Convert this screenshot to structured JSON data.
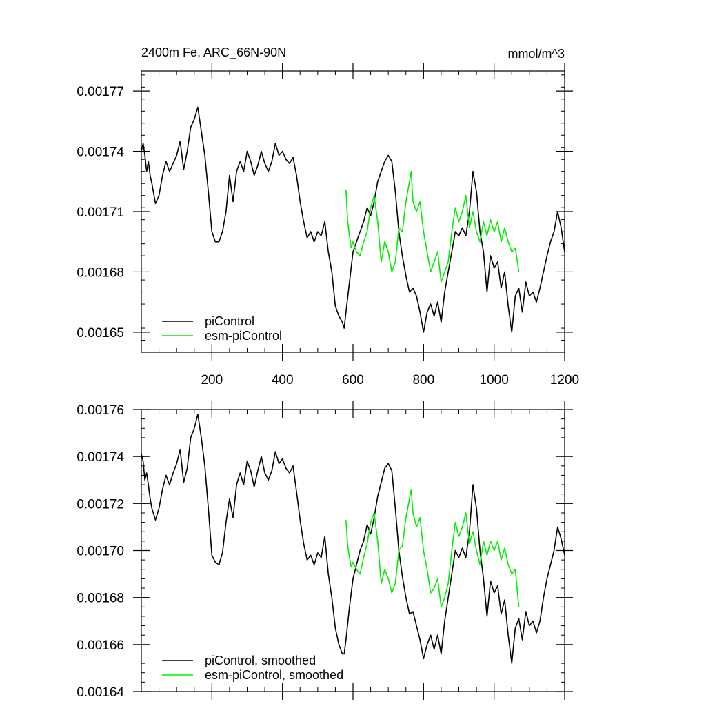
{
  "chart_data": [
    {
      "type": "line",
      "title": "2400m Fe, ARC_66N-90N",
      "units": "mmol/m^3",
      "xlim": [
        0,
        1200
      ],
      "ylim": [
        0.00164,
        0.00178
      ],
      "x_ticks": [
        {
          "value": 200,
          "label": "200"
        },
        {
          "value": 400,
          "label": "400"
        },
        {
          "value": 600,
          "label": "600"
        },
        {
          "value": 800,
          "label": "800"
        },
        {
          "value": 1000,
          "label": "1000"
        },
        {
          "value": 1200,
          "label": "1200"
        }
      ],
      "y_ticks": [
        {
          "value": 0.00165,
          "label": "0.00165"
        },
        {
          "value": 0.00168,
          "label": "0.00168"
        },
        {
          "value": 0.00171,
          "label": "0.00171"
        },
        {
          "value": 0.00174,
          "label": "0.00174"
        },
        {
          "value": 0.00177,
          "label": "0.00177"
        }
      ],
      "legend_position": "bottom-left",
      "series": [
        {
          "name": "piControl",
          "color": "#000000",
          "x": [
            0,
            5,
            10,
            15,
            20,
            25,
            30,
            40,
            50,
            60,
            70,
            80,
            90,
            100,
            110,
            120,
            130,
            140,
            150,
            160,
            170,
            180,
            190,
            200,
            210,
            220,
            230,
            240,
            250,
            260,
            270,
            280,
            290,
            300,
            310,
            320,
            330,
            340,
            350,
            360,
            370,
            380,
            390,
            400,
            410,
            420,
            430,
            440,
            450,
            460,
            470,
            480,
            490,
            500,
            510,
            520,
            530,
            540,
            550,
            560,
            570,
            575,
            580,
            590,
            600,
            610,
            620,
            630,
            640,
            650,
            660,
            670,
            680,
            690,
            700,
            710,
            720,
            730,
            740,
            750,
            760,
            770,
            780,
            790,
            800,
            810,
            820,
            830,
            840,
            850,
            860,
            870,
            880,
            890,
            900,
            910,
            920,
            930,
            940,
            950,
            960,
            970,
            980,
            990,
            1000,
            1010,
            1020,
            1030,
            1040,
            1050,
            1060,
            1070,
            1080,
            1090,
            1100,
            1110,
            1120,
            1130,
            1140,
            1150,
            1160,
            1170,
            1180,
            1190,
            1200
          ],
          "values": [
            0.00174,
            0.001744,
            0.001738,
            0.00173,
            0.001735,
            0.001728,
            0.001724,
            0.001714,
            0.001718,
            0.001728,
            0.001735,
            0.00173,
            0.001734,
            0.001738,
            0.001745,
            0.001731,
            0.00174,
            0.001752,
            0.001756,
            0.001762,
            0.00175,
            0.001738,
            0.00172,
            0.0017,
            0.001695,
            0.001695,
            0.0017,
            0.00171,
            0.001728,
            0.001715,
            0.00173,
            0.001735,
            0.00173,
            0.00174,
            0.001735,
            0.001728,
            0.001733,
            0.00174,
            0.001734,
            0.00173,
            0.001735,
            0.001744,
            0.001738,
            0.00174,
            0.001736,
            0.001734,
            0.001737,
            0.001728,
            0.001715,
            0.001705,
            0.001697,
            0.0017,
            0.001695,
            0.0017,
            0.001698,
            0.001705,
            0.00169,
            0.00168,
            0.001663,
            0.001658,
            0.001655,
            0.001652,
            0.00166,
            0.001675,
            0.00169,
            0.001695,
            0.0017,
            0.001705,
            0.001712,
            0.001708,
            0.001715,
            0.001725,
            0.00173,
            0.001735,
            0.001738,
            0.001735,
            0.00172,
            0.0017,
            0.001688,
            0.001678,
            0.00167,
            0.001672,
            0.001668,
            0.00166,
            0.00165,
            0.00166,
            0.001664,
            0.001658,
            0.001665,
            0.001655,
            0.00167,
            0.00168,
            0.00169,
            0.0017,
            0.001698,
            0.001702,
            0.001698,
            0.00171,
            0.00173,
            0.00172,
            0.0017,
            0.00169,
            0.00167,
            0.001688,
            0.001682,
            0.001685,
            0.001672,
            0.00168,
            0.001663,
            0.00165,
            0.001668,
            0.001672,
            0.00166,
            0.001675,
            0.001668,
            0.00167,
            0.001665,
            0.001672,
            0.00168,
            0.001688,
            0.001695,
            0.0017,
            0.00171,
            0.001702,
            0.00169
          ]
        },
        {
          "name": "esm-piControl",
          "color": "#00ee00",
          "x": [
            580,
            585,
            590,
            595,
            600,
            610,
            620,
            630,
            640,
            650,
            660,
            670,
            680,
            690,
            700,
            710,
            720,
            730,
            740,
            750,
            760,
            765,
            770,
            780,
            790,
            800,
            810,
            820,
            830,
            840,
            850,
            860,
            870,
            880,
            890,
            900,
            910,
            920,
            930,
            940,
            950,
            960,
            970,
            980,
            990,
            1000,
            1010,
            1020,
            1030,
            1040,
            1050,
            1060,
            1070
          ],
          "values": [
            0.001721,
            0.001705,
            0.001698,
            0.001692,
            0.001695,
            0.00169,
            0.001688,
            0.001695,
            0.0017,
            0.001712,
            0.001718,
            0.001705,
            0.001685,
            0.001695,
            0.00169,
            0.00168,
            0.001685,
            0.001702,
            0.0017,
            0.001715,
            0.001725,
            0.00173,
            0.001715,
            0.00171,
            0.001715,
            0.0017,
            0.00169,
            0.00168,
            0.001685,
            0.00169,
            0.001675,
            0.00168,
            0.001685,
            0.0017,
            0.001712,
            0.001705,
            0.00171,
            0.001718,
            0.001702,
            0.00171,
            0.0017,
            0.001695,
            0.001705,
            0.001698,
            0.001706,
            0.0017,
            0.001705,
            0.001695,
            0.001702,
            0.001695,
            0.00169,
            0.001692,
            0.00168
          ]
        }
      ]
    },
    {
      "type": "line",
      "title": "",
      "xlim": [
        0,
        1200
      ],
      "ylim": [
        0.00164,
        0.00176
      ],
      "y_ticks": [
        {
          "value": 0.00164,
          "label": "0.00164"
        },
        {
          "value": 0.00166,
          "label": "0.00166"
        },
        {
          "value": 0.00168,
          "label": "0.00168"
        },
        {
          "value": 0.0017,
          "label": "0.00170"
        },
        {
          "value": 0.00172,
          "label": "0.00172"
        },
        {
          "value": 0.00174,
          "label": "0.00174"
        },
        {
          "value": 0.00176,
          "label": "0.00176"
        }
      ],
      "x_ticks": [
        {
          "value": 200,
          "label": ""
        },
        {
          "value": 400,
          "label": ""
        },
        {
          "value": 600,
          "label": ""
        },
        {
          "value": 800,
          "label": ""
        },
        {
          "value": 1000,
          "label": ""
        },
        {
          "value": 1200,
          "label": ""
        }
      ],
      "legend_position": "bottom-left",
      "series": [
        {
          "name": "piControl, smoothed",
          "color": "#000000",
          "x": [
            0,
            5,
            10,
            15,
            20,
            25,
            30,
            40,
            50,
            60,
            70,
            80,
            90,
            100,
            110,
            120,
            130,
            140,
            150,
            160,
            170,
            180,
            190,
            200,
            210,
            220,
            230,
            240,
            250,
            260,
            270,
            280,
            290,
            300,
            310,
            320,
            330,
            340,
            350,
            360,
            370,
            380,
            390,
            400,
            410,
            420,
            430,
            440,
            450,
            460,
            470,
            480,
            490,
            500,
            510,
            520,
            530,
            540,
            550,
            560,
            570,
            575,
            580,
            590,
            600,
            610,
            620,
            630,
            640,
            650,
            660,
            670,
            680,
            690,
            700,
            710,
            720,
            730,
            740,
            750,
            760,
            770,
            780,
            790,
            800,
            810,
            820,
            830,
            840,
            850,
            860,
            870,
            880,
            890,
            900,
            910,
            920,
            930,
            940,
            950,
            960,
            970,
            980,
            990,
            1000,
            1010,
            1020,
            1030,
            1040,
            1050,
            1060,
            1070,
            1080,
            1090,
            1100,
            1110,
            1120,
            1130,
            1140,
            1150,
            1160,
            1170,
            1180,
            1190,
            1200
          ],
          "values": [
            0.001741,
            0.001738,
            0.00173,
            0.001733,
            0.001728,
            0.001722,
            0.001718,
            0.001713,
            0.001718,
            0.001726,
            0.001732,
            0.001728,
            0.001733,
            0.001737,
            0.001743,
            0.001729,
            0.001735,
            0.001748,
            0.001752,
            0.001758,
            0.001748,
            0.001736,
            0.001718,
            0.001698,
            0.001695,
            0.001694,
            0.001699,
            0.001712,
            0.001722,
            0.001714,
            0.001728,
            0.001733,
            0.001728,
            0.001738,
            0.001734,
            0.001727,
            0.001734,
            0.00174,
            0.001733,
            0.00173,
            0.001734,
            0.001742,
            0.001737,
            0.001739,
            0.001735,
            0.001733,
            0.001736,
            0.001725,
            0.001713,
            0.001703,
            0.001696,
            0.001698,
            0.001694,
            0.001699,
            0.001697,
            0.001706,
            0.00169,
            0.00168,
            0.001667,
            0.00166,
            0.001656,
            0.001656,
            0.001662,
            0.001676,
            0.001688,
            0.001694,
            0.0017,
            0.001704,
            0.001711,
            0.001707,
            0.001714,
            0.001723,
            0.001729,
            0.001735,
            0.001737,
            0.001734,
            0.001718,
            0.0017,
            0.001689,
            0.00168,
            0.001673,
            0.001674,
            0.001668,
            0.001662,
            0.001654,
            0.00166,
            0.001664,
            0.001658,
            0.001664,
            0.001656,
            0.00167,
            0.00168,
            0.00169,
            0.0017,
            0.001697,
            0.001701,
            0.001697,
            0.001708,
            0.001728,
            0.001718,
            0.0017,
            0.001688,
            0.001672,
            0.001687,
            0.001682,
            0.001685,
            0.001673,
            0.001679,
            0.001664,
            0.001652,
            0.001667,
            0.001671,
            0.001662,
            0.001674,
            0.001668,
            0.00167,
            0.001665,
            0.00167,
            0.00168,
            0.001688,
            0.001694,
            0.0017,
            0.00171,
            0.001705,
            0.001698
          ]
        },
        {
          "name": "esm-piControl, smoothed",
          "color": "#00ee00",
          "x": [
            580,
            585,
            590,
            595,
            600,
            610,
            620,
            630,
            640,
            650,
            660,
            670,
            680,
            690,
            700,
            710,
            720,
            730,
            740,
            750,
            760,
            765,
            770,
            780,
            790,
            800,
            810,
            820,
            830,
            840,
            850,
            860,
            870,
            880,
            890,
            900,
            910,
            920,
            930,
            940,
            950,
            960,
            970,
            980,
            990,
            1000,
            1010,
            1020,
            1030,
            1040,
            1050,
            1060,
            1070
          ],
          "values": [
            0.001713,
            0.001702,
            0.001697,
            0.001693,
            0.001695,
            0.001692,
            0.00169,
            0.001697,
            0.001703,
            0.001712,
            0.001716,
            0.001704,
            0.001686,
            0.001692,
            0.001688,
            0.001682,
            0.001686,
            0.0017,
            0.001702,
            0.001714,
            0.001722,
            0.001726,
            0.001716,
            0.00171,
            0.001714,
            0.0017,
            0.001692,
            0.001682,
            0.001684,
            0.001688,
            0.001676,
            0.00168,
            0.001686,
            0.0017,
            0.001712,
            0.001706,
            0.00171,
            0.001716,
            0.001703,
            0.001708,
            0.0017,
            0.001694,
            0.001704,
            0.001698,
            0.001704,
            0.0017,
            0.001704,
            0.001696,
            0.001701,
            0.001694,
            0.00169,
            0.001692,
            0.001676
          ]
        }
      ]
    }
  ]
}
